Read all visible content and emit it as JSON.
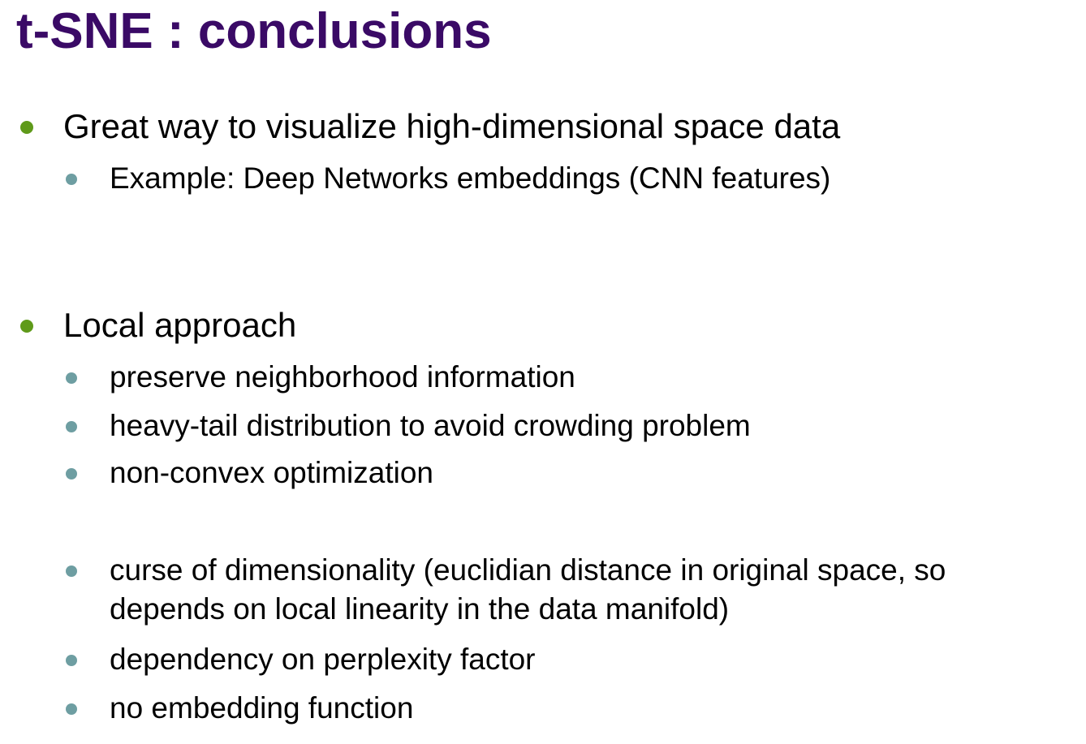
{
  "slide": {
    "title": "t-SNE : conclusions",
    "bullets": [
      {
        "text": "Great way to visualize high-dimensional space data",
        "children": [
          {
            "text": "Example: Deep Networks embeddings (CNN features)"
          }
        ]
      },
      {
        "text": "Local approach",
        "children": [
          {
            "text": "preserve neighborhood information"
          },
          {
            "text": "heavy-tail distribution to avoid crowding problem"
          },
          {
            "text": "non-convex optimization"
          },
          {
            "line1": "curse of dimensionality (euclidian distance in original space, so",
            "line2": "depends on local linearity in the data manifold)"
          },
          {
            "text": "dependency on perplexity factor"
          },
          {
            "text": "no embedding function"
          }
        ]
      }
    ],
    "colors": {
      "title": "#3a0a66",
      "bullet_level1": "#5f9a1a",
      "bullet_level2": "#6e9ea2"
    }
  }
}
